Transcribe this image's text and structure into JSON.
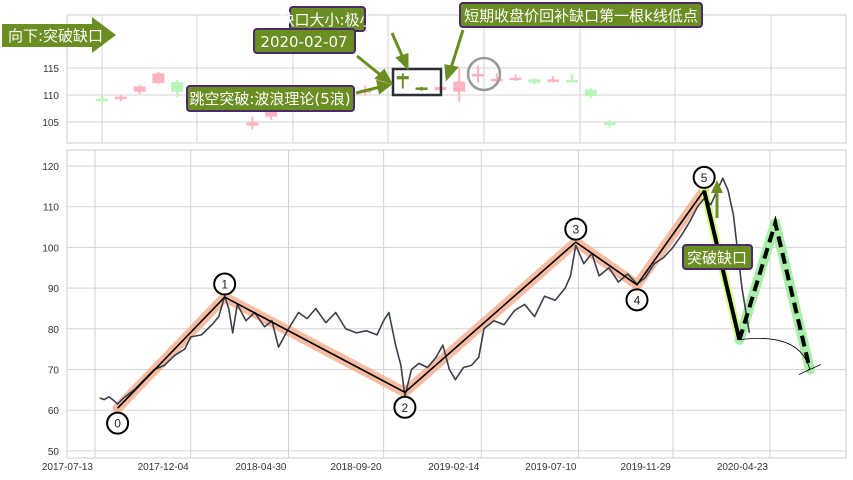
{
  "colors": {
    "annotation_fill": "#6b8e23",
    "annotation_border": "#4b2a6b",
    "candle_up": "#ffb3c1",
    "candle_down": "#b8f5b8",
    "candle_highlight": "#6b8e23",
    "price_line": "#3a3f4a",
    "wave_band": "#f4a582",
    "breakout_band": "#d4ff80",
    "projection_band": "#a8eea8",
    "grid": "#d3d3d3"
  },
  "annotations": {
    "direction_arrow": "向下:突破缺口",
    "gap_size": "缺口大小:极小",
    "gap_date": "2020-02-07",
    "jump_breakout": "跳空突破:波浪理论(5浪)",
    "gap_fill": "短期收盘价回补缺口第一根k线低点",
    "breakout_gap": "突破缺口"
  },
  "chart_data": [
    {
      "type": "candlestick",
      "ylim": [
        100,
        125
      ],
      "yticks": [
        105,
        110,
        115
      ],
      "grid": true,
      "candles": [
        {
          "i": 0,
          "o": 109.3,
          "c": 109.3,
          "h": 109.8,
          "l": 108.8,
          "kind": "down"
        },
        {
          "i": 1,
          "o": 109.3,
          "c": 109.7,
          "h": 110.0,
          "l": 108.8,
          "kind": "up"
        },
        {
          "i": 2,
          "o": 110.6,
          "c": 111.6,
          "h": 111.8,
          "l": 110.2,
          "kind": "up"
        },
        {
          "i": 3,
          "o": 112.2,
          "c": 114.0,
          "h": 114.3,
          "l": 112.0,
          "kind": "up"
        },
        {
          "i": 4,
          "o": 112.4,
          "c": 110.6,
          "h": 112.8,
          "l": 109.6,
          "kind": "down"
        },
        {
          "i": 8,
          "o": 104.3,
          "c": 104.9,
          "h": 106.0,
          "l": 103.6,
          "kind": "up"
        },
        {
          "i": 9,
          "o": 106.0,
          "c": 107.2,
          "h": 107.5,
          "l": 105.4,
          "kind": "up"
        },
        {
          "i": 14,
          "o": 110.4,
          "c": 111.0,
          "h": 111.8,
          "l": 109.9,
          "kind": "up"
        },
        {
          "i": 15,
          "o": 112.6,
          "c": 113.3,
          "h": 113.6,
          "l": 112.3,
          "kind": "up"
        },
        {
          "i": 16,
          "o": 113.5,
          "c": 112.9,
          "h": 114.0,
          "l": 111.2,
          "kind": "highlight"
        },
        {
          "i": 17,
          "o": 111.1,
          "c": 111.4,
          "h": 111.5,
          "l": 110.8,
          "kind": "highlight"
        },
        {
          "i": 18,
          "o": 110.9,
          "c": 111.5,
          "h": 111.6,
          "l": 110.6,
          "kind": "up"
        },
        {
          "i": 19,
          "o": 110.6,
          "c": 112.5,
          "h": 115.0,
          "l": 108.7,
          "kind": "up"
        },
        {
          "i": 20,
          "o": 113.6,
          "c": 113.9,
          "h": 115.5,
          "l": 112.3,
          "kind": "up"
        },
        {
          "i": 21,
          "o": 112.8,
          "c": 113.0,
          "h": 114.0,
          "l": 111.8,
          "kind": "up"
        },
        {
          "i": 22,
          "o": 113.0,
          "c": 113.2,
          "h": 113.8,
          "l": 112.6,
          "kind": "up"
        },
        {
          "i": 23,
          "o": 112.9,
          "c": 112.3,
          "h": 113.1,
          "l": 112.0,
          "kind": "down"
        },
        {
          "i": 24,
          "o": 112.5,
          "c": 112.9,
          "h": 113.5,
          "l": 112.3,
          "kind": "up"
        },
        {
          "i": 25,
          "o": 112.8,
          "c": 112.6,
          "h": 113.9,
          "l": 112.4,
          "kind": "down"
        },
        {
          "i": 26,
          "o": 111.0,
          "c": 109.8,
          "h": 111.2,
          "l": 109.4,
          "kind": "down"
        },
        {
          "i": 27,
          "o": 104.9,
          "c": 104.5,
          "h": 105.4,
          "l": 103.9,
          "kind": "down"
        }
      ]
    },
    {
      "type": "line",
      "ylim": [
        48,
        124
      ],
      "xlim": [
        "2017-06-01",
        "2020-08-15"
      ],
      "yticks": [
        50,
        60,
        70,
        80,
        90,
        100,
        110,
        120
      ],
      "xticks": [
        "2017-07-13",
        "2017-12-04",
        "2018-04-30",
        "2018-09-20",
        "2019-02-14",
        "2019-07-10",
        "2019-11-29",
        "2020-04-23"
      ],
      "grid": true,
      "price": [
        [
          "2017-07-20",
          63.0
        ],
        [
          "2017-07-27",
          62.6
        ],
        [
          "2017-08-03",
          63.3
        ],
        [
          "2017-08-10",
          62.4
        ],
        [
          "2017-08-16",
          61.5
        ],
        [
          "2017-08-25",
          63.0
        ],
        [
          "2017-09-10",
          65.0
        ],
        [
          "2017-09-25",
          67.5
        ],
        [
          "2017-10-10",
          70.0
        ],
        [
          "2017-10-25",
          71.0
        ],
        [
          "2017-11-10",
          73.5
        ],
        [
          "2017-11-25",
          75.0
        ],
        [
          "2017-12-04",
          78.0
        ],
        [
          "2017-12-20",
          78.5
        ],
        [
          "2018-01-05",
          81.0
        ],
        [
          "2018-01-15",
          83.0
        ],
        [
          "2018-01-24",
          88.0
        ],
        [
          "2018-01-30",
          85.0
        ],
        [
          "2018-02-05",
          79.0
        ],
        [
          "2018-02-12",
          86.0
        ],
        [
          "2018-02-25",
          82.0
        ],
        [
          "2018-03-10",
          84.0
        ],
        [
          "2018-03-25",
          80.5
        ],
        [
          "2018-04-05",
          82.0
        ],
        [
          "2018-04-15",
          75.5
        ],
        [
          "2018-04-30",
          80.0
        ],
        [
          "2018-05-15",
          84.0
        ],
        [
          "2018-05-28",
          82.5
        ],
        [
          "2018-06-10",
          85.0
        ],
        [
          "2018-06-25",
          81.5
        ],
        [
          "2018-07-10",
          84.0
        ],
        [
          "2018-07-25",
          80.0
        ],
        [
          "2018-08-10",
          79.0
        ],
        [
          "2018-08-25",
          79.5
        ],
        [
          "2018-09-10",
          78.5
        ],
        [
          "2018-09-20",
          82.0
        ],
        [
          "2018-09-28",
          84.0
        ],
        [
          "2018-10-08",
          76.0
        ],
        [
          "2018-10-16",
          71.0
        ],
        [
          "2018-10-22",
          63.5
        ],
        [
          "2018-11-01",
          70.0
        ],
        [
          "2018-11-12",
          71.5
        ],
        [
          "2018-11-25",
          70.5
        ],
        [
          "2018-12-08",
          73.0
        ],
        [
          "2018-12-18",
          76.0
        ],
        [
          "2018-12-28",
          70.0
        ],
        [
          "2019-01-06",
          67.5
        ],
        [
          "2019-01-18",
          70.5
        ],
        [
          "2019-01-30",
          71.0
        ],
        [
          "2019-02-10",
          73.0
        ],
        [
          "2019-02-18",
          80.0
        ],
        [
          "2019-03-05",
          82.0
        ],
        [
          "2019-03-20",
          81.0
        ],
        [
          "2019-04-05",
          84.5
        ],
        [
          "2019-04-20",
          86.0
        ],
        [
          "2019-05-05",
          83.0
        ],
        [
          "2019-05-20",
          88.0
        ],
        [
          "2019-06-05",
          87.0
        ],
        [
          "2019-06-20",
          90.0
        ],
        [
          "2019-06-28",
          93.0
        ],
        [
          "2019-07-06",
          100.5
        ],
        [
          "2019-07-18",
          96.0
        ],
        [
          "2019-07-30",
          98.5
        ],
        [
          "2019-08-10",
          93.0
        ],
        [
          "2019-08-25",
          95.0
        ],
        [
          "2019-09-08",
          91.5
        ],
        [
          "2019-09-22",
          93.5
        ],
        [
          "2019-10-06",
          91.0
        ],
        [
          "2019-10-18",
          92.5
        ],
        [
          "2019-11-01",
          96.0
        ],
        [
          "2019-11-15",
          97.5
        ],
        [
          "2019-11-29",
          100.0
        ],
        [
          "2019-12-12",
          103.0
        ],
        [
          "2019-12-25",
          106.5
        ],
        [
          "2020-01-05",
          110.0
        ],
        [
          "2020-01-15",
          112.0
        ],
        [
          "2020-01-25",
          110.5
        ],
        [
          "2020-02-05",
          114.5
        ],
        [
          "2020-02-12",
          117.0
        ],
        [
          "2020-02-20",
          114.0
        ],
        [
          "2020-02-28",
          108.0
        ],
        [
          "2020-03-06",
          98.0
        ],
        [
          "2020-03-12",
          90.0
        ],
        [
          "2020-03-18",
          84.0
        ],
        [
          "2020-03-23",
          79.0
        ]
      ],
      "waves": [
        {
          "label": "0",
          "date": "2017-08-16",
          "value": 60.5
        },
        {
          "label": "1",
          "date": "2018-01-24",
          "value": 87.8
        },
        {
          "label": "2",
          "date": "2018-10-22",
          "value": 64.4
        },
        {
          "label": "3",
          "date": "2019-07-06",
          "value": 101.3
        },
        {
          "label": "4",
          "date": "2019-10-06",
          "value": 90.8
        },
        {
          "label": "5",
          "date": "2020-01-15",
          "value": 114.0
        }
      ],
      "breakout_leg": [
        [
          "2020-01-15",
          114.0
        ],
        [
          "2020-03-08",
          77.3
        ]
      ],
      "projection": [
        [
          "2020-03-08",
          77.3
        ],
        [
          "2020-05-01",
          106.0
        ],
        [
          "2020-06-22",
          70.0
        ]
      ]
    }
  ]
}
